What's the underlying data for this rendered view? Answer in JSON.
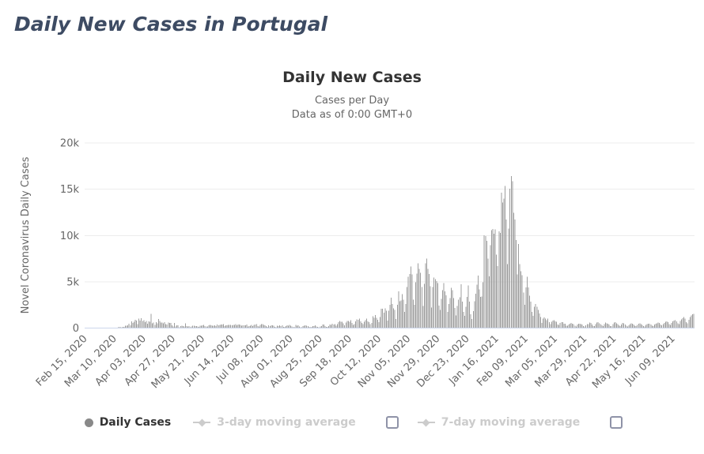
{
  "page": {
    "title": "Daily New Cases in Portugal"
  },
  "chart": {
    "title": "Daily New Cases",
    "subtitle_line1": "Cases per Day",
    "subtitle_line2": "Data as of 0:00 GMT+0"
  },
  "legend": {
    "daily_cases_label": "Daily Cases",
    "ma3_label": "3-day moving average",
    "ma7_label": "7-day moving average",
    "ma3_checked": false,
    "ma7_checked": false
  },
  "chart_data": {
    "type": "bar",
    "title": "Daily New Cases",
    "subtitle": [
      "Cases per Day",
      "Data as of 0:00 GMT+0"
    ],
    "yaxis_title": "Novel Coronavirus Daily Cases",
    "ylim": [
      0,
      20000
    ],
    "grid": true,
    "legend_position": "bottom",
    "yticks": [
      {
        "v": 0,
        "label": "0"
      },
      {
        "v": 5000,
        "label": "5k"
      },
      {
        "v": 10000,
        "label": "10k"
      },
      {
        "v": 15000,
        "label": "15k"
      },
      {
        "v": 20000,
        "label": "20k"
      }
    ],
    "x_start": "Feb 15, 2020",
    "x_frequency": "daily",
    "xtick_interval": 24,
    "xticks": [
      "Feb 15, 2020",
      "Mar 10, 2020",
      "Apr 03, 2020",
      "Apr 27, 2020",
      "May 21, 2020",
      "Jun 14, 2020",
      "Jul 08, 2020",
      "Aug 01, 2020",
      "Aug 25, 2020",
      "Sep 18, 2020",
      "Oct 12, 2020",
      "Nov 05, 2020",
      "Nov 29, 2020",
      "Dec 23, 2020",
      "Jan 16, 2021",
      "Feb 09, 2021",
      "Mar 05, 2021",
      "Mar 29, 2021",
      "Apr 22, 2021",
      "May 16, 2021",
      "Jun 09, 2021"
    ],
    "values": [
      0,
      0,
      0,
      0,
      0,
      0,
      0,
      0,
      0,
      0,
      0,
      0,
      0,
      0,
      0,
      0,
      2,
      2,
      3,
      5,
      9,
      13,
      20,
      30,
      39,
      41,
      59,
      86,
      117,
      76,
      98,
      117,
      143,
      235,
      260,
      320,
      460,
      302,
      724,
      549,
      683,
      902,
      792,
      446,
      1035,
      808,
      1086,
      783,
      852,
      638,
      754,
      452,
      712,
      699,
      1516,
      515,
      598,
      349,
      643,
      514,
      992,
      750,
      603,
      595,
      521,
      657,
      444,
      371,
      595,
      540,
      546,
      295,
      163,
      540,
      183,
      295,
      306,
      92,
      227,
      242,
      219,
      178,
      533,
      203,
      187,
      228,
      98,
      187,
      264,
      240,
      219,
      226,
      173,
      125,
      252,
      271,
      285,
      331,
      223,
      165,
      153,
      285,
      350,
      304,
      272,
      256,
      297,
      195,
      366,
      287,
      331,
      377,
      382,
      421,
      200,
      303,
      287,
      346,
      344,
      327,
      300,
      346,
      329,
      417,
      298,
      375,
      377,
      336,
      259,
      311,
      291,
      310,
      367,
      192,
      229,
      259,
      328,
      229,
      328,
      374,
      413,
      232,
      167,
      328,
      443,
      418,
      342,
      291,
      233,
      135,
      306,
      233,
      311,
      313,
      246,
      128,
      98,
      252,
      203,
      311,
      233,
      290,
      135,
      111,
      203,
      302,
      255,
      352,
      238,
      152,
      106,
      112,
      325,
      255,
      291,
      181,
      102,
      87,
      212,
      252,
      278,
      244,
      199,
      138,
      84,
      132,
      229,
      219,
      287,
      192,
      121,
      99,
      181,
      211,
      399,
      401,
      227,
      141,
      122,
      213,
      388,
      331,
      486,
      374,
      420,
      244,
      425,
      646,
      780,
      687,
      673,
      497,
      283,
      611,
      770,
      776,
      668,
      869,
      552,
      337,
      425,
      734,
      954,
      899,
      1007,
      708,
      542,
      427,
      671,
      854,
      1012,
      740,
      623,
      427,
      548,
      1278,
      1101,
      1394,
      1090,
      908,
      661,
      1208,
      2072,
      2101,
      1646,
      2153,
      1856,
      817,
      1876,
      2535,
      3270,
      2608,
      2153,
      1949,
      1001,
      2506,
      3960,
      2899,
      2982,
      3669,
      3062,
      1741,
      2596,
      4452,
      5550,
      5839,
      6640,
      5784,
      3061,
      2506,
      4935,
      5891,
      6994,
      6383,
      5962,
      4452,
      2371,
      4788,
      6994,
      7497,
      6383,
      5824,
      4510,
      2198,
      4452,
      5444,
      5290,
      5090,
      4868,
      2435,
      1975,
      3152,
      4097,
      4868,
      3965,
      3534,
      1768,
      2597,
      3262,
      4368,
      4097,
      3239,
      2177,
      1384,
      2371,
      3091,
      3343,
      4720,
      2846,
      1746,
      1310,
      2310,
      3384,
      4602,
      2846,
      1498,
      989,
      1834,
      2899,
      3704,
      4671,
      5653,
      4184,
      3384,
      3413,
      4956,
      10027,
      9927,
      9422,
      7502,
      5604,
      8972,
      10556,
      10698,
      10176,
      10663,
      7915,
      6702,
      10455,
      10269,
      14647,
      13544,
      13987,
      15333,
      11721,
      6923,
      10765,
      15073,
      16432,
      15871,
      12435,
      11721,
      9498,
      5805,
      9083,
      6916,
      6132,
      5726,
      3846,
      2505,
      4387,
      5540,
      4387,
      3480,
      2854,
      1739,
      1303,
      2324,
      2583,
      2324,
      1944,
      1570,
      1186,
      549,
      1032,
      1160,
      1027,
      871,
      1016,
      631,
      410,
      691,
      810,
      866,
      744,
      686,
      385,
      336,
      567,
      627,
      628,
      487,
      456,
      272,
      244,
      389,
      477,
      566,
      479,
      435,
      240,
      182,
      366,
      455,
      478,
      422,
      371,
      226,
      178,
      316,
      424,
      431,
      586,
      543,
      387,
      224,
      196,
      445,
      591,
      623,
      517,
      436,
      292,
      210,
      407,
      605,
      517,
      464,
      378,
      234,
      196,
      424,
      592,
      651,
      531,
      447,
      317,
      196,
      372,
      546,
      508,
      387,
      266,
      173,
      292,
      448,
      506,
      456,
      391,
      264,
      209,
      362,
      451,
      492,
      438,
      346,
      227,
      184,
      338,
      427,
      459,
      476,
      390,
      257,
      212,
      370,
      454,
      521,
      609,
      551,
      372,
      289,
      422,
      561,
      677,
      725,
      646,
      430,
      336,
      574,
      721,
      794,
      856,
      740,
      511,
      417,
      786,
      933,
      1067,
      1183,
      1004,
      655,
      531,
      897,
      1206,
      1350,
      1496,
      1556
    ],
    "colors": {
      "bar": "#9e9e9e",
      "grid": "#ececec",
      "axis_line": "#ccd6eb",
      "title": "#333333",
      "subtitle": "#666666",
      "tick_text": "#666666",
      "page_title": "#3d4b63",
      "legend_active": "#333333",
      "legend_inactive": "#cccccc",
      "checkbox_border": "#8f93a8",
      "marker_active": "#898989"
    }
  }
}
